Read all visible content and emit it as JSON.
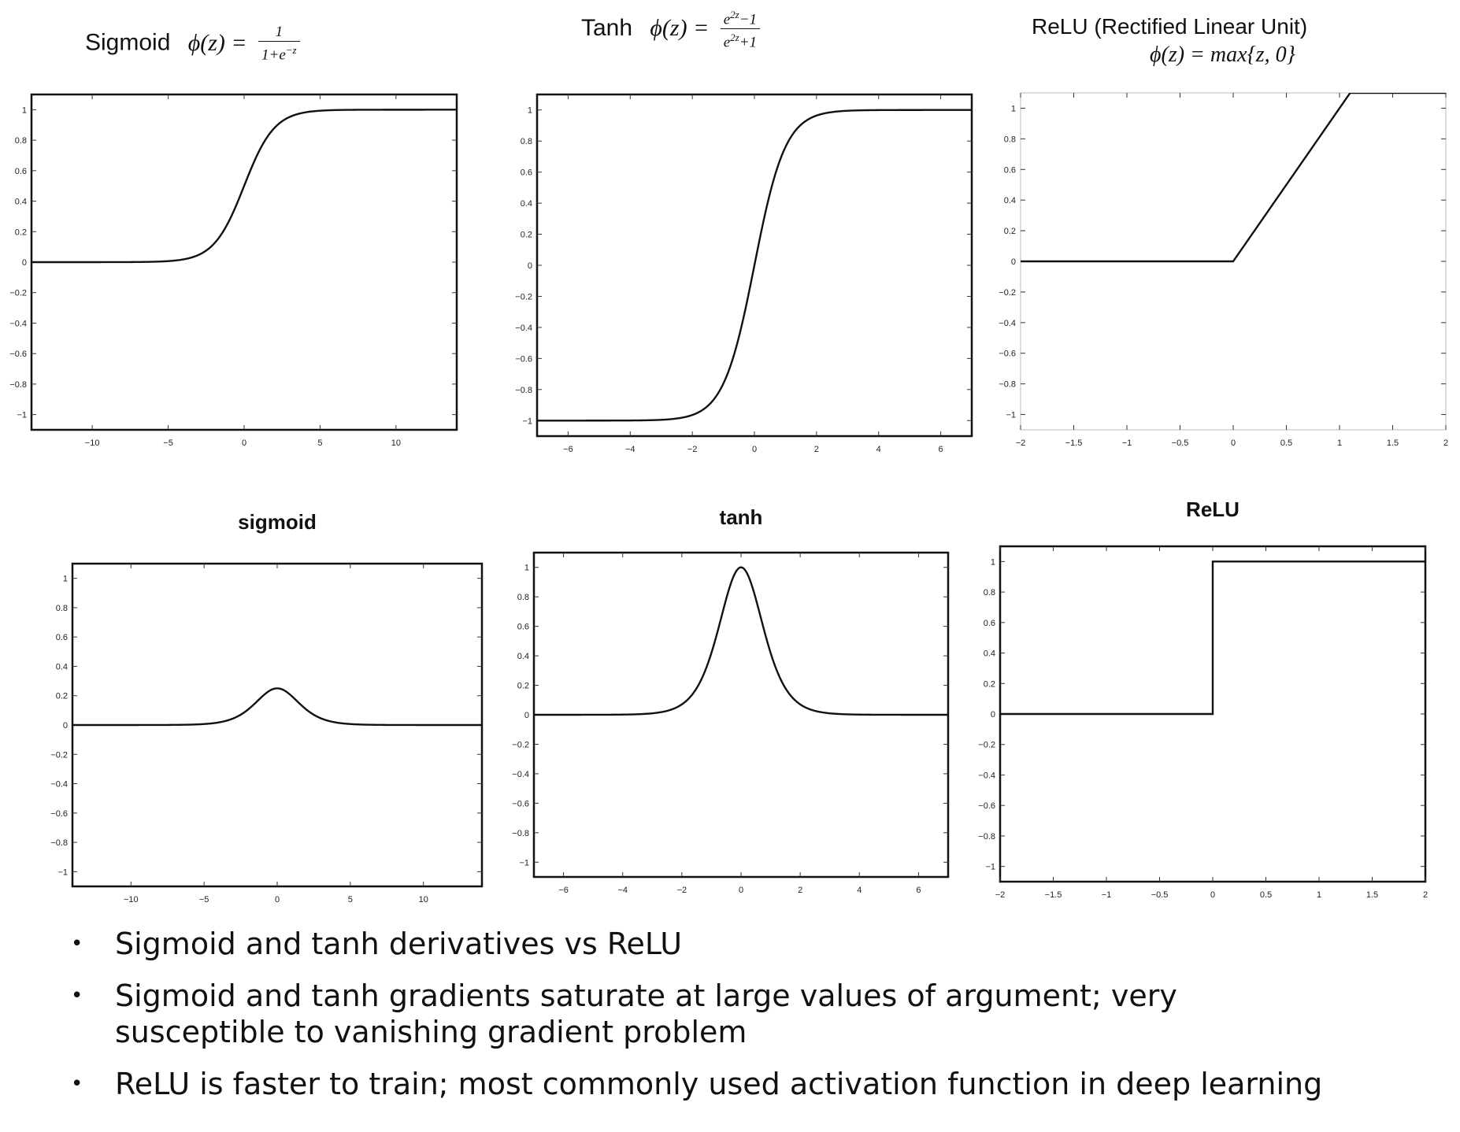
{
  "equations": {
    "sigmoid": {
      "label": "Sigmoid",
      "lhs": "ϕ(z) =",
      "num": "1",
      "den_base": "1+e",
      "den_exp": "−z"
    },
    "tanh": {
      "label": "Tanh",
      "lhs": "ϕ(z) =",
      "num_base": "e",
      "num_exp": "2z",
      "num_rest": "−1",
      "den_base": "e",
      "den_exp": "2z",
      "den_rest": "+1"
    },
    "relu": {
      "label": "ReLU (Rectified Linear Unit)",
      "formula": "ϕ(z) = max{z, 0}"
    }
  },
  "chart_data": [
    {
      "type": "line",
      "function": "sigmoid",
      "title": "",
      "xlabel": "",
      "ylabel": "",
      "xlim": [
        -14,
        14
      ],
      "ylim": [
        -1.1,
        1.1
      ],
      "xticks": [
        -10,
        -5,
        0,
        5,
        10
      ],
      "yticks": [
        -1,
        -0.8,
        -0.6,
        -0.4,
        -0.2,
        0,
        0.2,
        0.4,
        0.6,
        0.8,
        1
      ],
      "xtick_labels": [
        "−10",
        "−5",
        "0",
        "5",
        "10"
      ],
      "ytick_labels": [
        "−1",
        "−0.8",
        "−0.6",
        "−0.4",
        "−0.2",
        "0",
        "0.2",
        "0.4",
        "0.6",
        "0.8",
        "1"
      ],
      "grid": false
    },
    {
      "type": "line",
      "function": "tanh",
      "title": "",
      "xlabel": "",
      "ylabel": "",
      "xlim": [
        -7,
        7
      ],
      "ylim": [
        -1.1,
        1.1
      ],
      "xticks": [
        -6,
        -4,
        -2,
        0,
        2,
        4,
        6
      ],
      "yticks": [
        -1,
        -0.8,
        -0.6,
        -0.4,
        -0.2,
        0,
        0.2,
        0.4,
        0.6,
        0.8,
        1
      ],
      "xtick_labels": [
        "−6",
        "−4",
        "−2",
        "0",
        "2",
        "4",
        "6"
      ],
      "ytick_labels": [
        "−1",
        "−0.8",
        "−0.6",
        "−0.4",
        "−0.2",
        "0",
        "0.2",
        "0.4",
        "0.6",
        "0.8",
        "1"
      ],
      "grid": false
    },
    {
      "type": "line",
      "function": "relu",
      "title": "",
      "xlabel": "",
      "ylabel": "",
      "xlim": [
        -2,
        2
      ],
      "ylim": [
        -1.1,
        1.1
      ],
      "xticks": [
        -2,
        -1.5,
        -1,
        -0.5,
        0,
        0.5,
        1,
        1.5,
        2
      ],
      "yticks": [
        -1,
        -0.8,
        -0.6,
        -0.4,
        -0.2,
        0,
        0.2,
        0.4,
        0.6,
        0.8,
        1
      ],
      "xtick_labels": [
        "−2",
        "−1.5",
        "−1",
        "−0.5",
        "0",
        "0.5",
        "1",
        "1.5",
        "2"
      ],
      "ytick_labels": [
        "−1",
        "−0.8",
        "−0.6",
        "−0.4",
        "−0.2",
        "0",
        "0.2",
        "0.4",
        "0.6",
        "0.8",
        "1"
      ],
      "grid": false
    },
    {
      "type": "line",
      "function": "sigmoid_derivative",
      "title": "sigmoid",
      "xlabel": "",
      "ylabel": "",
      "xlim": [
        -14,
        14
      ],
      "ylim": [
        -1.1,
        1.1
      ],
      "xticks": [
        -10,
        -5,
        0,
        5,
        10
      ],
      "yticks": [
        -1,
        -0.8,
        -0.6,
        -0.4,
        -0.2,
        0,
        0.2,
        0.4,
        0.6,
        0.8,
        1
      ],
      "xtick_labels": [
        "−10",
        "−5",
        "0",
        "5",
        "10"
      ],
      "ytick_labels": [
        "−1",
        "−0.8",
        "−0.6",
        "−0.4",
        "−0.2",
        "0",
        "0.2",
        "0.4",
        "0.6",
        "0.8",
        "1"
      ],
      "grid": false
    },
    {
      "type": "line",
      "function": "tanh_derivative",
      "title": "tanh",
      "xlabel": "",
      "ylabel": "",
      "xlim": [
        -7,
        7
      ],
      "ylim": [
        -1.1,
        1.1
      ],
      "xticks": [
        -6,
        -4,
        -2,
        0,
        2,
        4,
        6
      ],
      "yticks": [
        -1,
        -0.8,
        -0.6,
        -0.4,
        -0.2,
        0,
        0.2,
        0.4,
        0.6,
        0.8,
        1
      ],
      "xtick_labels": [
        "−6",
        "−4",
        "−2",
        "0",
        "2",
        "4",
        "6"
      ],
      "ytick_labels": [
        "−1",
        "−0.8",
        "−0.6",
        "−0.4",
        "−0.2",
        "0",
        "0.2",
        "0.4",
        "0.6",
        "0.8",
        "1"
      ],
      "grid": false
    },
    {
      "type": "line",
      "function": "relu_derivative",
      "title": "ReLU",
      "xlabel": "",
      "ylabel": "",
      "xlim": [
        -2,
        2
      ],
      "ylim": [
        -1.1,
        1.1
      ],
      "xticks": [
        -2,
        -1.5,
        -1,
        -0.5,
        0,
        0.5,
        1,
        1.5,
        2
      ],
      "yticks": [
        -1,
        -0.8,
        -0.6,
        -0.4,
        -0.2,
        0,
        0.2,
        0.4,
        0.6,
        0.8,
        1
      ],
      "xtick_labels": [
        "−2",
        "−1.5",
        "−1",
        "−0.5",
        "0",
        "0.5",
        "1",
        "1.5",
        "2"
      ],
      "ytick_labels": [
        "−1",
        "−0.8",
        "−0.6",
        "−0.4",
        "−0.2",
        "0",
        "0.2",
        "0.4",
        "0.6",
        "0.8",
        "1"
      ],
      "grid": false
    }
  ],
  "bullets": [
    "Sigmoid and tanh derivatives vs ReLU",
    "Sigmoid and tanh gradients saturate at large values of argument; very susceptible to vanishing gradient problem",
    "ReLU is faster to train; most commonly used activation function in deep learning"
  ]
}
